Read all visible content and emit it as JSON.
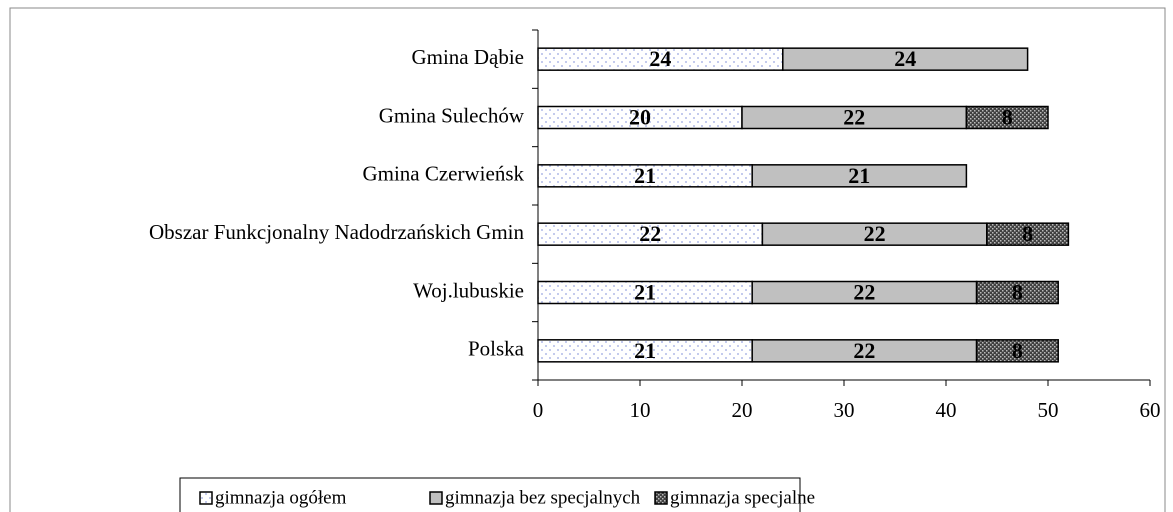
{
  "chart_data": {
    "type": "stacked_bar_horizontal",
    "categories": [
      "Gmina Dąbie",
      "Gmina Sulechów",
      "Gmina Czerwieńsk",
      "Obszar Funkcjonalny Nadodrzańskich Gmin",
      "Woj.lubuskie",
      "Polska"
    ],
    "series": [
      {
        "name": "gimnazja ogółem",
        "color": "#ffffff",
        "values": [
          24,
          20,
          21,
          22,
          21,
          21
        ]
      },
      {
        "name": "gimnazja bez specjalnych",
        "color": "#c0c0c0",
        "values": [
          24,
          22,
          21,
          22,
          22,
          22
        ]
      },
      {
        "name": "gimnazja specjalne",
        "color": "#404040",
        "values": [
          null,
          8,
          null,
          8,
          8,
          8
        ]
      }
    ],
    "xlim": [
      0,
      60
    ],
    "xticks": [
      0,
      10,
      20,
      30,
      40,
      50,
      60
    ],
    "legend": "bottom"
  }
}
